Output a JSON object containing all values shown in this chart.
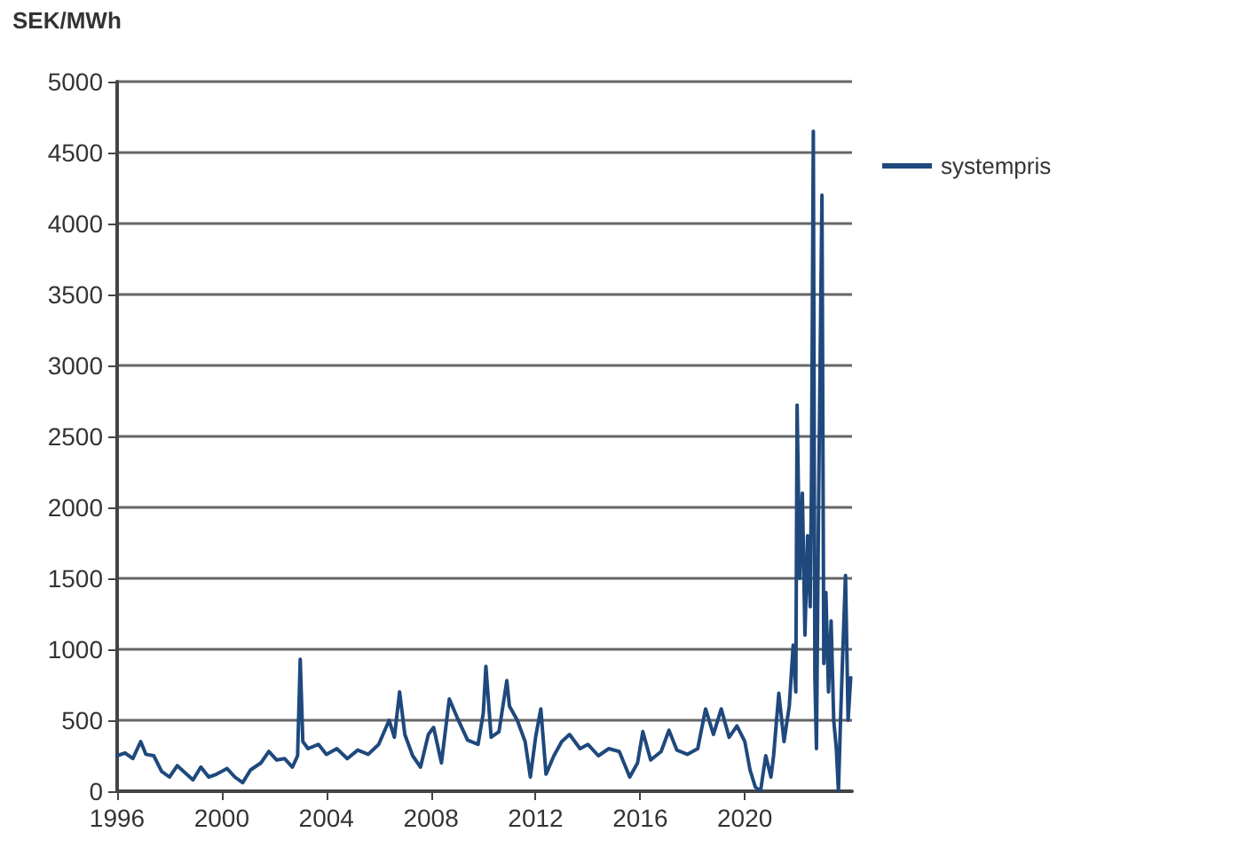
{
  "chart_data": {
    "type": "line",
    "title": "SEK/MWh",
    "xlim": [
      1996,
      2024.1
    ],
    "xticks": [
      1996,
      2000,
      2004,
      2008,
      2012,
      2016,
      2020
    ],
    "ylim": [
      0,
      5000
    ],
    "yticks": [
      0,
      500,
      1000,
      1500,
      2000,
      2500,
      3000,
      3500,
      4000,
      4500,
      5000
    ],
    "grid": "y",
    "legend": "top right",
    "marker": "none",
    "line_style": "solid",
    "series": [
      {
        "name": "systempris",
        "color": "#1f497d",
        "x": [
          1996.0,
          1996.3,
          1996.6,
          1996.9,
          1997.1,
          1997.4,
          1997.7,
          1998.0,
          1998.3,
          1998.6,
          1998.9,
          1999.2,
          1999.5,
          1999.8,
          2000.2,
          2000.5,
          2000.8,
          2001.1,
          2001.5,
          2001.8,
          2002.1,
          2002.4,
          2002.7,
          2002.9,
          2003.0,
          2003.1,
          2003.3,
          2003.7,
          2004.0,
          2004.4,
          2004.8,
          2005.2,
          2005.6,
          2006.0,
          2006.4,
          2006.6,
          2006.8,
          2007.0,
          2007.3,
          2007.6,
          2007.9,
          2008.1,
          2008.4,
          2008.7,
          2009.0,
          2009.4,
          2009.8,
          2010.0,
          2010.1,
          2010.3,
          2010.6,
          2010.9,
          2011.0,
          2011.3,
          2011.6,
          2011.8,
          2012.0,
          2012.2,
          2012.4,
          2012.7,
          2013.0,
          2013.3,
          2013.7,
          2014.0,
          2014.4,
          2014.8,
          2015.2,
          2015.6,
          2015.9,
          2016.1,
          2016.4,
          2016.8,
          2017.1,
          2017.4,
          2017.8,
          2018.2,
          2018.5,
          2018.8,
          2019.1,
          2019.4,
          2019.7,
          2020.0,
          2020.2,
          2020.4,
          2020.6,
          2020.8,
          2021.0,
          2021.1,
          2021.3,
          2021.5,
          2021.7,
          2021.85,
          2021.95,
          2022.0,
          2022.1,
          2022.2,
          2022.3,
          2022.4,
          2022.5,
          2022.55,
          2022.62,
          2022.68,
          2022.74,
          2022.82,
          2022.95,
          2023.02,
          2023.1,
          2023.2,
          2023.3,
          2023.4,
          2023.5,
          2023.58,
          2023.66,
          2023.75,
          2023.85,
          2023.95,
          2024.05
        ],
        "values": [
          250,
          270,
          230,
          350,
          260,
          250,
          140,
          100,
          180,
          130,
          80,
          170,
          100,
          120,
          160,
          100,
          60,
          150,
          200,
          280,
          220,
          230,
          170,
          250,
          930,
          350,
          300,
          330,
          260,
          300,
          230,
          290,
          260,
          330,
          500,
          380,
          700,
          400,
          250,
          170,
          400,
          450,
          200,
          650,
          520,
          360,
          330,
          550,
          880,
          380,
          420,
          780,
          600,
          500,
          350,
          100,
          380,
          580,
          120,
          250,
          350,
          400,
          300,
          330,
          250,
          300,
          280,
          100,
          200,
          420,
          220,
          280,
          430,
          290,
          260,
          300,
          580,
          400,
          580,
          380,
          460,
          350,
          150,
          30,
          0,
          250,
          100,
          250,
          690,
          350,
          600,
          1030,
          700,
          2720,
          1500,
          2100,
          1100,
          1800,
          1300,
          2200,
          4650,
          800,
          300,
          2000,
          4200,
          900,
          1400,
          700,
          1200,
          500,
          300,
          0,
          500,
          1000,
          1520,
          500,
          800
        ]
      }
    ]
  }
}
